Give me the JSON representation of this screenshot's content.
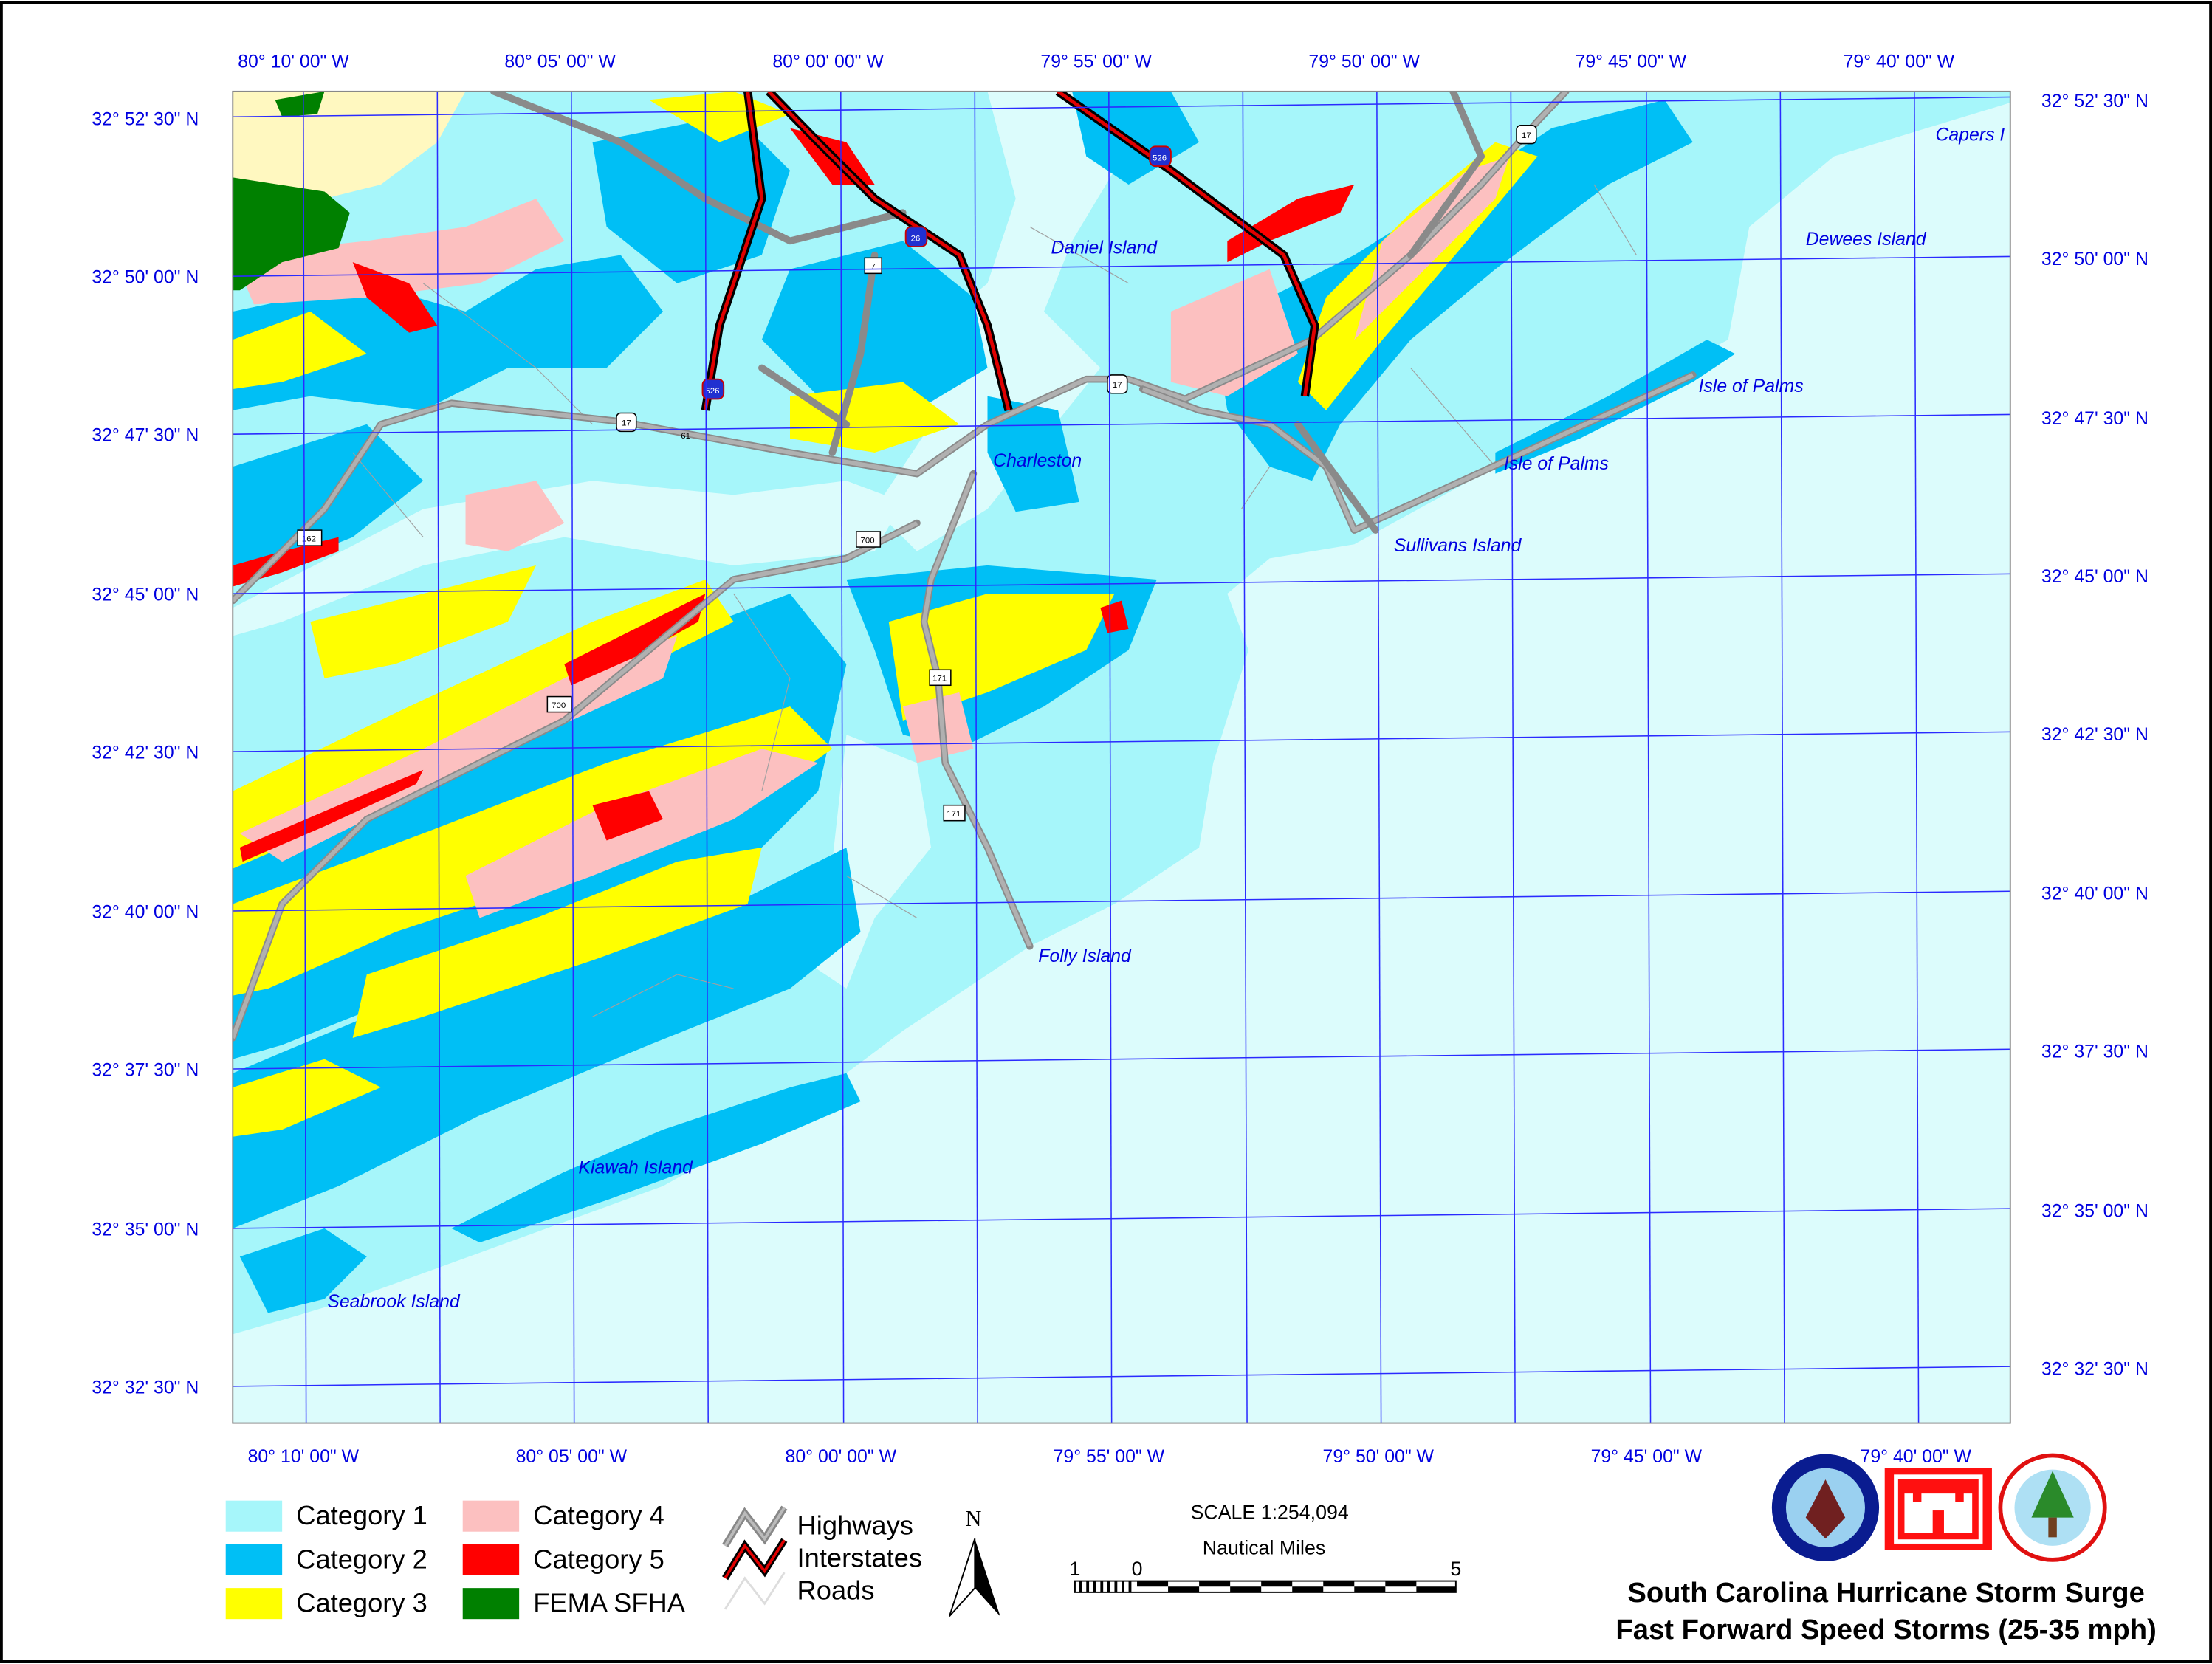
{
  "map": {
    "top_longitudes": [
      "80° 10' 00\" W",
      "80° 05' 00\" W",
      "80° 00' 00\" W",
      "79° 55' 00\" W",
      "79° 50' 00\" W",
      "79° 45' 00\" W",
      "79° 40' 00\" W"
    ],
    "bottom_longitudes": [
      "80° 10' 00\" W",
      "80° 05' 00\" W",
      "80° 00' 00\" W",
      "79° 55' 00\" W",
      "79° 50' 00\" W",
      "79° 45' 00\" W",
      "79° 40' 00\" W"
    ],
    "left_latitudes": [
      "32° 52' 30\" N",
      "32° 50' 00\" N",
      "32° 47' 30\" N",
      "32° 45' 00\" N",
      "32° 42' 30\" N",
      "32° 40' 00\" N",
      "32° 37' 30\" N",
      "32° 35' 00\" N",
      "32° 32' 30\" N"
    ],
    "right_latitudes": [
      "32° 52' 30\" N",
      "32° 50' 00\" N",
      "32° 47' 30\" N",
      "32° 45' 00\" N",
      "32° 42' 30\" N",
      "32° 40' 00\" N",
      "32° 37' 30\" N",
      "32° 35' 00\" N",
      "32° 32' 30\" N"
    ],
    "places": [
      "Capers I",
      "Dewees Island",
      "Daniel Island",
      "Isle of Palms",
      "Isle of Palms",
      "Charleston",
      "Sullivans Island",
      "Folly Island",
      "Kiawah Island",
      "Seabrook Island"
    ],
    "shields": [
      "17",
      "17",
      "17",
      "7",
      "171",
      "171",
      "700",
      "700",
      "61",
      "162",
      "526",
      "26",
      "526"
    ]
  },
  "legend": {
    "categories": [
      {
        "label": "Category 1",
        "color": "#a6f6fa"
      },
      {
        "label": "Category 2",
        "color": "#00bff5"
      },
      {
        "label": "Category 3",
        "color": "#ffff00"
      },
      {
        "label": "Category 4",
        "color": "#fcc0c0"
      },
      {
        "label": "Category 5",
        "color": "#ff0000"
      },
      {
        "label": "FEMA SFHA",
        "color": "#008000"
      }
    ],
    "lines": [
      "Highways",
      "Interstates",
      "Roads"
    ],
    "north": "N"
  },
  "scale": {
    "text": "SCALE  1:254,094",
    "units": "Nautical Miles",
    "ticks": [
      "1",
      "0",
      "5"
    ]
  },
  "title": {
    "line1": "South Carolina Hurricane Storm Surge",
    "line2": "Fast Forward Speed Storms (25-35 mph)"
  },
  "colors": {
    "ocean": "#dcfcfc",
    "grid": "#2a2aff",
    "label": "#0000e0",
    "upland": "#fff8c0"
  }
}
